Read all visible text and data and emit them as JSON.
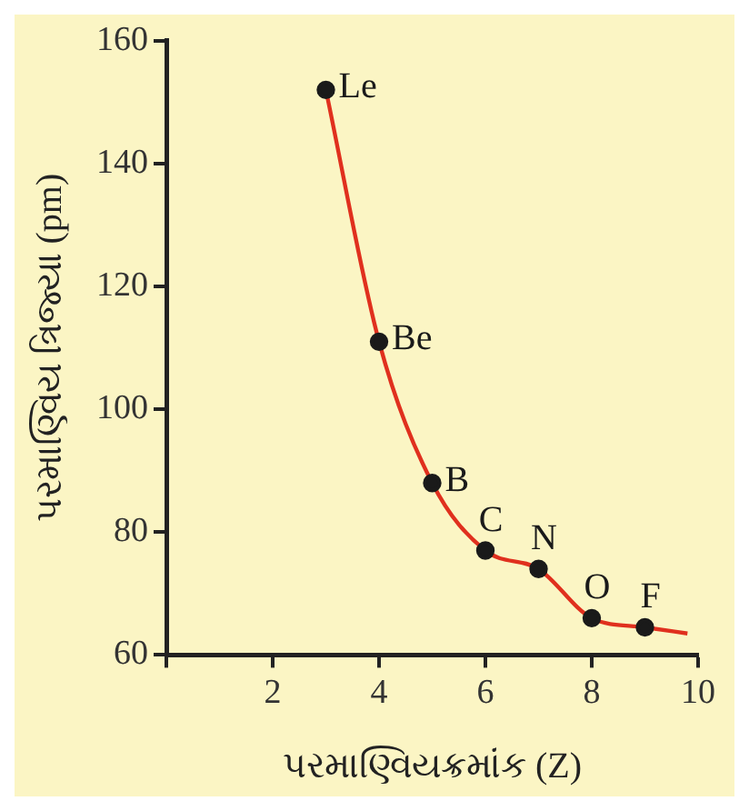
{
  "chart_data": {
    "type": "line",
    "xlabel": "પરમાણ્વિયક્રમાંક (Z)",
    "ylabel": "પરમાણ્વિય ત્રિજ્યા (pm)",
    "x": [
      3,
      4,
      5,
      6,
      7,
      8,
      9,
      9.8
    ],
    "series": [
      {
        "color": "#e0301e",
        "values": [
          152,
          111,
          88,
          77,
          74,
          66,
          64.5,
          63.5
        ],
        "value_labels": [
          "Le",
          "Be",
          "B",
          "C",
          "N",
          "O",
          "F",
          null
        ]
      }
    ],
    "xlim": [
      0,
      10
    ],
    "xticks": [
      {
        "value": 0,
        "label": null
      },
      2,
      4,
      6,
      8,
      10
    ],
    "ylim": [
      60,
      160
    ],
    "yticks": [
      60,
      80,
      100,
      120,
      140,
      160
    ],
    "legend": false,
    "marker": "circle",
    "line_style": "solid"
  }
}
